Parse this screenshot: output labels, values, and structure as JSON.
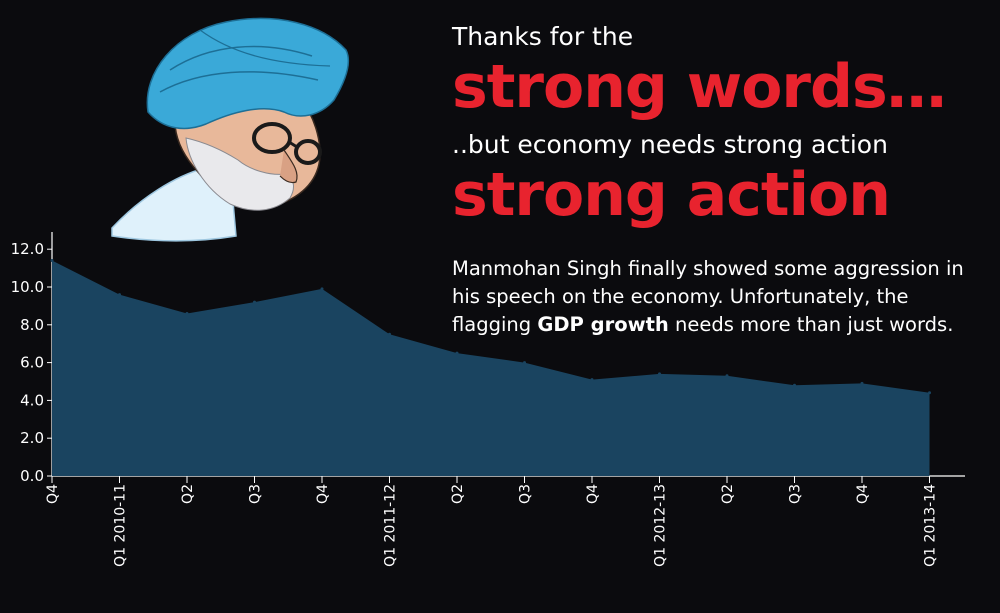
{
  "headline": {
    "line1": "Thanks for the",
    "line2": "strong words…",
    "line3": "..but economy needs strong action",
    "line4": "strong action"
  },
  "description": {
    "before": "Manmohan Singh finally showed some aggression in his speech on the economy. Unfortunately, the flagging ",
    "bold": "GDP growth",
    "after": " needs more than just words."
  },
  "colors": {
    "accent_red": "#e8232e",
    "area_fill": "#1a4460",
    "background": "#0b0b0e",
    "turban": "#3aa9d8"
  },
  "illustration": "caricature-of-man-in-blue-turban",
  "chart_data": {
    "type": "area",
    "categories": [
      "Q4",
      "Q1 2010-11",
      "Q2",
      "Q3",
      "Q4",
      "Q1 2011-12",
      "Q2",
      "Q3",
      "Q4",
      "Q1 2012-13",
      "Q2",
      "Q3",
      "Q4",
      "Q1 2013-14"
    ],
    "values": [
      11.4,
      9.6,
      8.6,
      9.2,
      9.9,
      7.5,
      6.5,
      6.0,
      5.1,
      5.4,
      5.3,
      4.8,
      4.9,
      4.4
    ],
    "y_ticks": [
      "0.0",
      "2.0",
      "4.0",
      "6.0",
      "8.0",
      "10.0",
      "12.0"
    ],
    "ylim": [
      0,
      12.5
    ],
    "title": "",
    "xlabel": "",
    "ylabel": "",
    "grid": false
  }
}
